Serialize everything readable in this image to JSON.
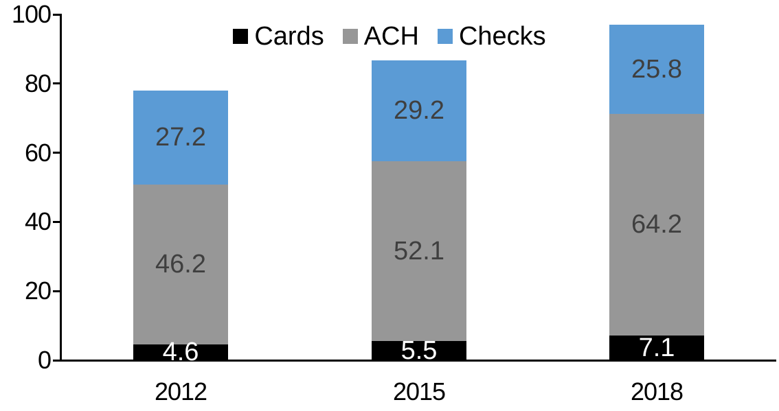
{
  "chart_data": {
    "type": "bar",
    "stacked": true,
    "title": "",
    "xlabel": "",
    "ylabel": "",
    "categories": [
      "2012",
      "2015",
      "2018"
    ],
    "series": [
      {
        "name": "Cards",
        "color": "#000000",
        "label_color": "#ffffff",
        "values": [
          4.6,
          5.5,
          7.1
        ]
      },
      {
        "name": "ACH",
        "color": "#979797",
        "label_color": "#3f3f3f",
        "values": [
          46.2,
          52.1,
          64.2
        ]
      },
      {
        "name": "Checks",
        "color": "#5b9bd5",
        "label_color": "#3f3f3f",
        "values": [
          27.2,
          29.2,
          25.8
        ]
      }
    ],
    "totals": [
      78.0,
      86.8,
      97.1
    ],
    "ylim": [
      0,
      100
    ],
    "y_ticks": [
      0,
      20,
      40,
      60,
      80,
      100
    ],
    "grid": false,
    "data_labels": true,
    "legend_position": "top-center",
    "axis_color": "#000000",
    "background_color": "#ffffff"
  }
}
